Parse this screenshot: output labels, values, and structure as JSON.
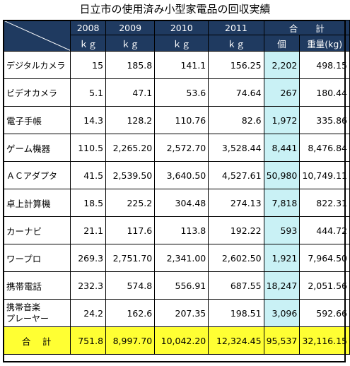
{
  "title": "日立市の使用済み小型家電品の回収実績",
  "header": {
    "years": [
      "2008",
      "2009",
      "2010",
      "2011"
    ],
    "total_label": "合　　計",
    "units": [
      "ｋｇ",
      "ｋｇ",
      "ｋｇ",
      "ｋｇ",
      "個",
      "重量(kg)"
    ]
  },
  "rows": [
    {
      "label": "デジタルカメラ",
      "values": [
        "15",
        "185.8",
        "141.1",
        "156.25",
        "2,202",
        "498.15"
      ]
    },
    {
      "label": "ビデオカメラ",
      "values": [
        "5.1",
        "47.1",
        "53.6",
        "74.64",
        "267",
        "180.44"
      ]
    },
    {
      "label": "電子手帳",
      "values": [
        "14.3",
        "128.2",
        "110.76",
        "82.6",
        "1,972",
        "335.86"
      ]
    },
    {
      "label": "ゲーム機器",
      "values": [
        "110.5",
        "2,265.20",
        "2,572.70",
        "3,528.44",
        "8,441",
        "8,476.84"
      ]
    },
    {
      "label": "ＡＣアダプタ",
      "values": [
        "41.5",
        "2,539.50",
        "3,640.50",
        "4,527.61",
        "50,980",
        "10,749.11"
      ]
    },
    {
      "label": "卓上計算機",
      "values": [
        "18.5",
        "225.2",
        "304.48",
        "274.13",
        "7,818",
        "822.31"
      ]
    },
    {
      "label": "カーナビ",
      "values": [
        "21.1",
        "117.6",
        "113.8",
        "192.22",
        "593",
        "444.72"
      ]
    },
    {
      "label": "ワープロ",
      "values": [
        "269.3",
        "2,751.70",
        "2,341.00",
        "2,602.50",
        "1,921",
        "7,964.50"
      ]
    },
    {
      "label": "携帯電話",
      "values": [
        "232.3",
        "574.8",
        "556.91",
        "687.55",
        "18,247",
        "2,051.56"
      ]
    },
    {
      "label": "携帯音楽\nプレーヤー",
      "values": [
        "24.2",
        "162.6",
        "207.35",
        "198.51",
        "3,096",
        "592.66"
      ]
    }
  ],
  "total": {
    "label": "合　計",
    "values": [
      "751.8",
      "8,997.70",
      "10,042.20",
      "12,324.45",
      "95,537",
      "32,116.15"
    ]
  },
  "colors": {
    "header_bg": "#1f3a60",
    "highlight": "#c9f1f5",
    "total_bg": "#ffff33"
  }
}
